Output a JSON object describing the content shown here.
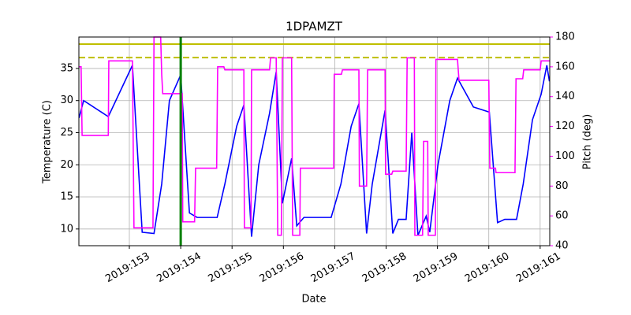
{
  "chart_data": {
    "type": "line",
    "title": "1DPAMZT",
    "x_label": "Date",
    "y_label": "Temperature (C)",
    "y2_label": "Pitch (deg)",
    "y2_color": "#ff00ff",
    "xlim": [
      152.017,
      161.187
    ],
    "xticks": [
      {
        "value": 153,
        "label": "2019:153"
      },
      {
        "value": 154,
        "label": "2019:154"
      },
      {
        "value": 155,
        "label": "2019:155"
      },
      {
        "value": 156,
        "label": "2019:156"
      },
      {
        "value": 157,
        "label": "2019:157"
      },
      {
        "value": 158,
        "label": "2019:158"
      },
      {
        "value": 159,
        "label": "2019:159"
      },
      {
        "value": 160,
        "label": "2019:160"
      },
      {
        "value": 161,
        "label": "2019:161"
      }
    ],
    "ylim": [
      7.4,
      39.9
    ],
    "yticks": [
      10,
      15,
      20,
      25,
      30,
      35
    ],
    "y2lim": [
      40,
      180
    ],
    "y2ticks": [
      40,
      60,
      80,
      100,
      120,
      140,
      160,
      180
    ],
    "grid": true,
    "hlines": [
      {
        "value": 38.8,
        "color": "#bfbf00",
        "dash": false
      },
      {
        "value": 36.7,
        "color": "#bfbf00",
        "dash": true
      }
    ],
    "vlines": [
      {
        "value": 154.0,
        "color": "#008000"
      }
    ],
    "series": [
      {
        "name": "Temperature",
        "color": "#0000ff",
        "x": [
          152.02,
          152.11,
          152.59,
          153.06,
          153.25,
          153.48,
          153.63,
          153.78,
          154.0,
          154.17,
          154.32,
          154.71,
          154.86,
          155.09,
          155.23,
          155.38,
          155.52,
          155.73,
          155.86,
          155.98,
          156.16,
          156.26,
          156.4,
          156.93,
          157.12,
          157.32,
          157.47,
          157.62,
          157.73,
          157.98,
          158.13,
          158.24,
          158.39,
          158.5,
          158.62,
          158.78,
          158.85,
          159.01,
          159.24,
          159.39,
          159.7,
          160.01,
          160.17,
          160.31,
          160.54,
          160.67,
          160.85,
          161.02,
          161.13,
          161.18
        ],
        "values": [
          27.3,
          30,
          27.5,
          35.5,
          9.5,
          9.3,
          17,
          30,
          34,
          12.5,
          11.8,
          11.8,
          17,
          26,
          29.3,
          8.8,
          20,
          28,
          34.5,
          14,
          21,
          10.5,
          11.8,
          11.8,
          17,
          26,
          29.5,
          9.3,
          17,
          28.5,
          9.3,
          11.5,
          11.5,
          25,
          9,
          12,
          9.5,
          20,
          30,
          33.5,
          29,
          28.2,
          11,
          11.5,
          11.5,
          17,
          27,
          31,
          35.5,
          33
        ]
      },
      {
        "name": "Pitch",
        "color": "#ff00ff",
        "axis": "y2",
        "x": [
          152.02,
          152.06,
          152.08,
          152.59,
          152.6,
          153.06,
          153.09,
          153.46,
          153.48,
          153.61,
          153.63,
          153.65,
          154.03,
          154.04,
          154.27,
          154.29,
          154.7,
          154.72,
          154.84,
          154.86,
          155.23,
          155.24,
          155.37,
          155.38,
          155.73,
          155.75,
          155.86,
          155.89,
          155.96,
          155.98,
          156.16,
          156.18,
          156.32,
          156.33,
          156.98,
          156.99,
          157.13,
          157.15,
          157.47,
          157.48,
          157.62,
          157.64,
          157.98,
          157.99,
          158.11,
          158.13,
          158.39,
          158.41,
          158.55,
          158.56,
          158.71,
          158.73,
          158.81,
          158.82,
          158.96,
          158.97,
          159.39,
          159.42,
          160.0,
          160.02,
          160.13,
          160.14,
          160.51,
          160.53,
          160.66,
          160.68,
          161.0,
          161.02,
          161.18
        ],
        "values": [
          160,
          160,
          114,
          114,
          164,
          164,
          52,
          52,
          180,
          180,
          155,
          142,
          142,
          56,
          56,
          92,
          92,
          160,
          160,
          158,
          158,
          52,
          52,
          158,
          158,
          166,
          166,
          47,
          47,
          166,
          166,
          47,
          47,
          92,
          92,
          155,
          155,
          158,
          158,
          80,
          80,
          158,
          158,
          88,
          88,
          90,
          90,
          166,
          166,
          47,
          47,
          110,
          110,
          47,
          47,
          165,
          165,
          151,
          151,
          92,
          92,
          89,
          89,
          152,
          152,
          158,
          158,
          164,
          164
        ]
      }
    ]
  }
}
